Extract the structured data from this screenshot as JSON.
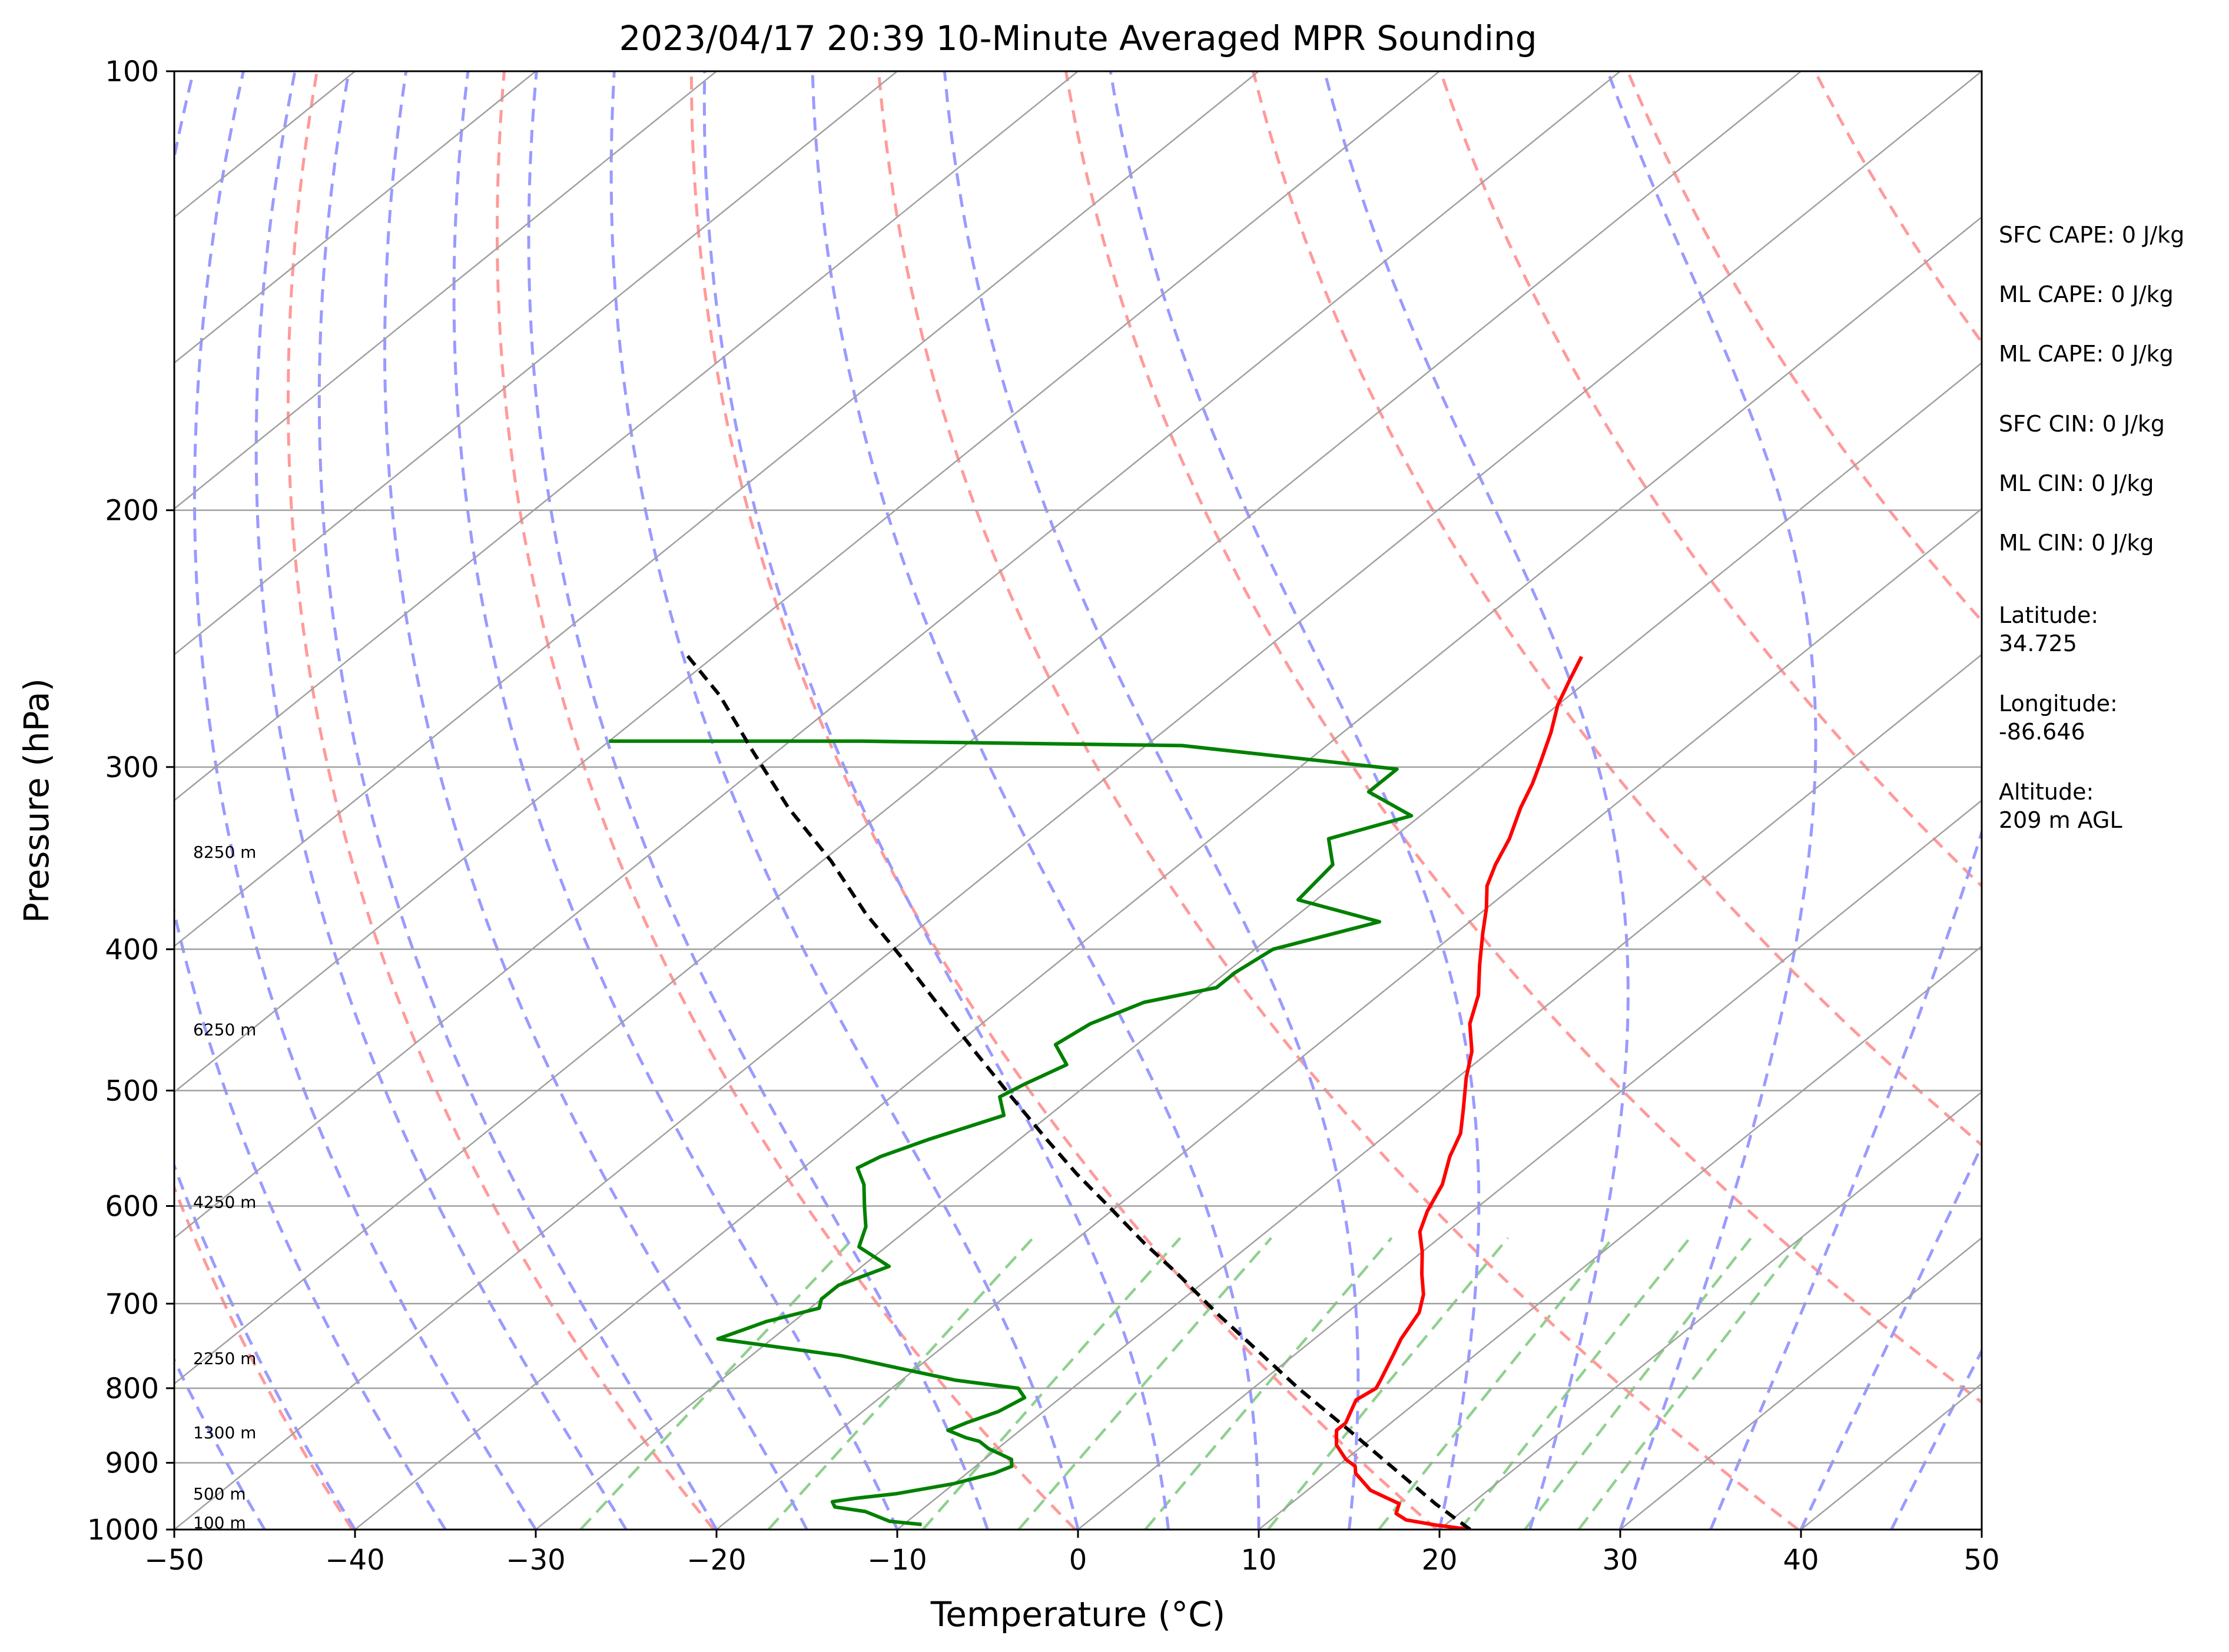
{
  "chart_data": {
    "type": "line",
    "title": "2023/04/17 20:39 10-Minute Averaged MPR Sounding",
    "xlabel": "Temperature (°C)",
    "ylabel": "Pressure (hPa)",
    "xlim": [
      -50,
      50
    ],
    "ylim": [
      1000,
      100
    ],
    "y_scale": "log",
    "x_ticks": [
      -50,
      -40,
      -30,
      -20,
      -10,
      0,
      10,
      20,
      30,
      40,
      50
    ],
    "x_tick_labels": [
      "−50",
      "−40",
      "−30",
      "−20",
      "−10",
      "0",
      "10",
      "20",
      "30",
      "40",
      "50"
    ],
    "y_ticks": [
      1000,
      900,
      800,
      700,
      600,
      500,
      400,
      300,
      200,
      100
    ],
    "y_tick_labels": [
      "1000",
      "900",
      "800",
      "700",
      "600",
      "500",
      "400",
      "300",
      "200",
      "100"
    ],
    "grid": true,
    "skew_deg_per_log_decade": 100,
    "colors": {
      "temperature": "#ff0000",
      "dewpoint": "#008000",
      "parcel": "#000000",
      "isotherm": "#a0a0a0",
      "dry_adiabat": "#ff9a9a",
      "moist_adiabat": "#9a9aff",
      "mixing_ratio": "#8fd08f"
    },
    "series": [
      {
        "name": "",
        "style": "solid",
        "color": "#ff0000",
        "points": [
          [
            21.7,
            1000
          ],
          [
            19.5,
            993
          ],
          [
            17.5,
            985
          ],
          [
            16.5,
            975
          ],
          [
            16.0,
            960
          ],
          [
            13.5,
            940
          ],
          [
            11.5,
            915
          ],
          [
            11.0,
            905
          ],
          [
            10.0,
            895
          ],
          [
            8.5,
            875
          ],
          [
            7.5,
            855
          ],
          [
            7.5,
            845
          ],
          [
            7.0,
            830
          ],
          [
            6.5,
            815
          ],
          [
            6.8,
            800
          ],
          [
            6.5,
            790
          ],
          [
            5.5,
            760
          ],
          [
            4.8,
            740
          ],
          [
            4.0,
            710
          ],
          [
            3.0,
            690
          ],
          [
            1.5,
            668
          ],
          [
            0.0,
            645
          ],
          [
            -1.5,
            625
          ],
          [
            -2.5,
            605
          ],
          [
            -3.5,
            580
          ],
          [
            -5.0,
            555
          ],
          [
            -6.0,
            535
          ],
          [
            -7.5,
            515
          ],
          [
            -9.5,
            490
          ],
          [
            -11.0,
            470
          ],
          [
            -13.0,
            450
          ],
          [
            -14.5,
            430
          ],
          [
            -16.5,
            410
          ],
          [
            -18.5,
            390
          ],
          [
            -20.0,
            375
          ],
          [
            -21.5,
            362
          ],
          [
            -22.5,
            350
          ],
          [
            -23.5,
            336
          ],
          [
            -25.0,
            320
          ],
          [
            -26.0,
            308
          ],
          [
            -27.0,
            298
          ],
          [
            -28.5,
            284
          ],
          [
            -30.0,
            272
          ],
          [
            -31.0,
            262
          ],
          [
            -32.0,
            252
          ]
        ]
      },
      {
        "name": "",
        "style": "solid",
        "color": "#008000",
        "points": [
          [
            -9.0,
            992
          ],
          [
            -11.0,
            987
          ],
          [
            -13.0,
            972
          ],
          [
            -15.0,
            965
          ],
          [
            -15.5,
            957
          ],
          [
            -14.5,
            952
          ],
          [
            -12.5,
            945
          ],
          [
            -10.0,
            930
          ],
          [
            -8.5,
            915
          ],
          [
            -8.0,
            905
          ],
          [
            -8.5,
            895
          ],
          [
            -10.5,
            880
          ],
          [
            -11.5,
            870
          ],
          [
            -12.5,
            865
          ],
          [
            -14.0,
            855
          ],
          [
            -13.5,
            845
          ],
          [
            -12.5,
            830
          ],
          [
            -12.0,
            812
          ],
          [
            -13.0,
            800
          ],
          [
            -17.0,
            790
          ],
          [
            -21.0,
            775
          ],
          [
            -25.0,
            760
          ],
          [
            -33.0,
            740
          ],
          [
            -31.5,
            720
          ],
          [
            -29.5,
            705
          ],
          [
            -30.0,
            695
          ],
          [
            -30.0,
            680
          ],
          [
            -28.5,
            660
          ],
          [
            -31.5,
            640
          ],
          [
            -32.5,
            620
          ],
          [
            -34.0,
            600
          ],
          [
            -35.5,
            580
          ],
          [
            -37.0,
            565
          ],
          [
            -36.5,
            555
          ],
          [
            -35.0,
            540
          ],
          [
            -32.5,
            520
          ],
          [
            -34.0,
            505
          ],
          [
            -33.5,
            495
          ],
          [
            -32.5,
            480
          ],
          [
            -34.5,
            465
          ],
          [
            -34.0,
            450
          ],
          [
            -32.5,
            435
          ],
          [
            -29.5,
            425
          ],
          [
            -29.5,
            415
          ],
          [
            -29.0,
            400
          ],
          [
            -25.0,
            383
          ],
          [
            -31.0,
            370
          ],
          [
            -31.5,
            350
          ],
          [
            -33.5,
            336
          ],
          [
            -30.5,
            324
          ],
          [
            -34.5,
            312
          ],
          [
            -34.5,
            301
          ],
          [
            -48.0,
            290
          ],
          [
            -66.0,
            288
          ],
          [
            -80.0,
            288
          ]
        ]
      },
      {
        "name": "",
        "style": "dashed",
        "color": "#000000",
        "points": [
          [
            21.7,
            1000
          ],
          [
            18.0,
            960
          ],
          [
            13.0,
            905
          ],
          [
            8.0,
            853
          ],
          [
            2.5,
            800
          ],
          [
            -2.0,
            757
          ],
          [
            -7.0,
            712
          ],
          [
            -12.0,
            668
          ],
          [
            -16.0,
            636
          ],
          [
            -20.5,
            600
          ],
          [
            -24.5,
            570
          ],
          [
            -28.5,
            540
          ],
          [
            -33.5,
            504
          ],
          [
            -38.5,
            470
          ],
          [
            -43.5,
            438
          ],
          [
            -48.5,
            408
          ],
          [
            -54.0,
            378
          ],
          [
            -59.5,
            348
          ],
          [
            -65.5,
            320
          ],
          [
            -71.5,
            292
          ],
          [
            -77.0,
            268
          ],
          [
            -82.0,
            250
          ]
        ]
      }
    ],
    "height_labels": [
      {
        "text": "100 m",
        "pressure": 989
      },
      {
        "text": "500 m",
        "pressure": 945
      },
      {
        "text": "1300 m",
        "pressure": 858
      },
      {
        "text": "2250 m",
        "pressure": 763
      },
      {
        "text": "4250 m",
        "pressure": 596
      },
      {
        "text": "6250 m",
        "pressure": 454
      },
      {
        "text": "8250 m",
        "pressure": 343
      }
    ],
    "annotations": [
      "SFC CAPE: 0 J/kg",
      "ML CAPE: 0 J/kg",
      "ML CAPE: 0 J/kg",
      "SFC CIN: 0 J/kg",
      "ML CIN: 0 J/kg",
      "ML CIN: 0 J/kg",
      "Latitude:",
      "34.725",
      "Longitude:",
      "-86.646",
      "Altitude:",
      "209 m AGL"
    ]
  }
}
